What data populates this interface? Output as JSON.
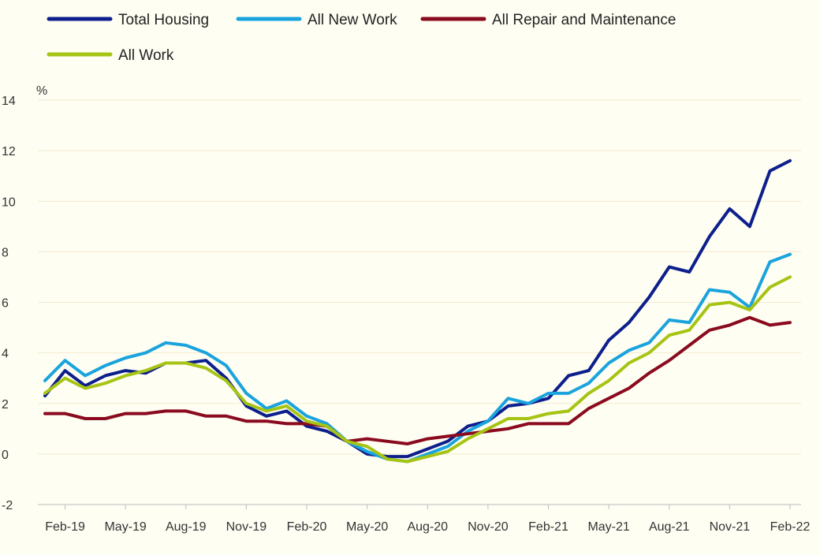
{
  "chart_data": {
    "type": "line",
    "ylabel": "%",
    "ylim": [
      -2,
      14
    ],
    "y_ticks": [
      -2,
      0,
      2,
      4,
      6,
      8,
      10,
      12,
      14
    ],
    "x": [
      "Jan-19",
      "Feb-19",
      "Mar-19",
      "Apr-19",
      "May-19",
      "Jun-19",
      "Jul-19",
      "Aug-19",
      "Sep-19",
      "Oct-19",
      "Nov-19",
      "Dec-19",
      "Jan-20",
      "Feb-20",
      "Mar-20",
      "Apr-20",
      "May-20",
      "Jun-20",
      "Jul-20",
      "Aug-20",
      "Sep-20",
      "Oct-20",
      "Nov-20",
      "Dec-20",
      "Jan-21",
      "Feb-21",
      "Mar-21",
      "Apr-21",
      "May-21",
      "Jun-21",
      "Jul-21",
      "Aug-21",
      "Sep-21",
      "Oct-21",
      "Nov-21",
      "Dec-21",
      "Jan-22",
      "Feb-22"
    ],
    "x_tick_labels": [
      "Feb-19",
      "May-19",
      "Aug-19",
      "Nov-19",
      "Feb-20",
      "May-20",
      "Aug-20",
      "Nov-20",
      "Feb-21",
      "May-21",
      "Aug-21",
      "Nov-21",
      "Feb-22"
    ],
    "grid": true,
    "legend_position": "top-left",
    "series": [
      {
        "name": "Total Housing",
        "color": "#0d1f8c",
        "values": [
          2.3,
          3.3,
          2.7,
          3.1,
          3.3,
          3.2,
          3.6,
          3.6,
          3.7,
          3.0,
          1.9,
          1.5,
          1.7,
          1.1,
          0.9,
          0.5,
          0.0,
          -0.1,
          -0.1,
          0.2,
          0.5,
          1.1,
          1.3,
          1.9,
          2.0,
          2.2,
          3.1,
          3.3,
          4.5,
          5.2,
          6.2,
          7.4,
          7.2,
          8.6,
          9.7,
          9.0,
          11.2,
          11.6
        ]
      },
      {
        "name": "All New Work",
        "color": "#1aa3dd",
        "values": [
          2.9,
          3.7,
          3.1,
          3.5,
          3.8,
          4.0,
          4.4,
          4.3,
          4.0,
          3.5,
          2.4,
          1.8,
          2.1,
          1.5,
          1.2,
          0.5,
          0.1,
          -0.2,
          -0.3,
          0.0,
          0.3,
          0.9,
          1.3,
          2.2,
          2.0,
          2.4,
          2.4,
          2.8,
          3.6,
          4.1,
          4.4,
          5.3,
          5.2,
          6.5,
          6.4,
          5.8,
          7.6,
          7.9
        ]
      },
      {
        "name": "All Repair and Maintenance",
        "color": "#8a0a1e",
        "values": [
          1.6,
          1.6,
          1.4,
          1.4,
          1.6,
          1.6,
          1.7,
          1.7,
          1.5,
          1.5,
          1.3,
          1.3,
          1.2,
          1.2,
          1.1,
          0.5,
          0.6,
          0.5,
          0.4,
          0.6,
          0.7,
          0.8,
          0.9,
          1.0,
          1.2,
          1.2,
          1.2,
          1.8,
          2.2,
          2.6,
          3.2,
          3.7,
          4.3,
          4.9,
          5.1,
          5.4,
          5.1,
          5.2
        ]
      },
      {
        "name": "All Work",
        "color": "#a6c414",
        "values": [
          2.4,
          3.0,
          2.6,
          2.8,
          3.1,
          3.3,
          3.6,
          3.6,
          3.4,
          2.9,
          2.0,
          1.7,
          1.9,
          1.3,
          1.1,
          0.5,
          0.3,
          -0.2,
          -0.3,
          -0.1,
          0.1,
          0.6,
          1.0,
          1.4,
          1.4,
          1.6,
          1.7,
          2.4,
          2.9,
          3.6,
          4.0,
          4.7,
          4.9,
          5.9,
          6.0,
          5.7,
          6.6,
          7.0
        ]
      }
    ]
  }
}
